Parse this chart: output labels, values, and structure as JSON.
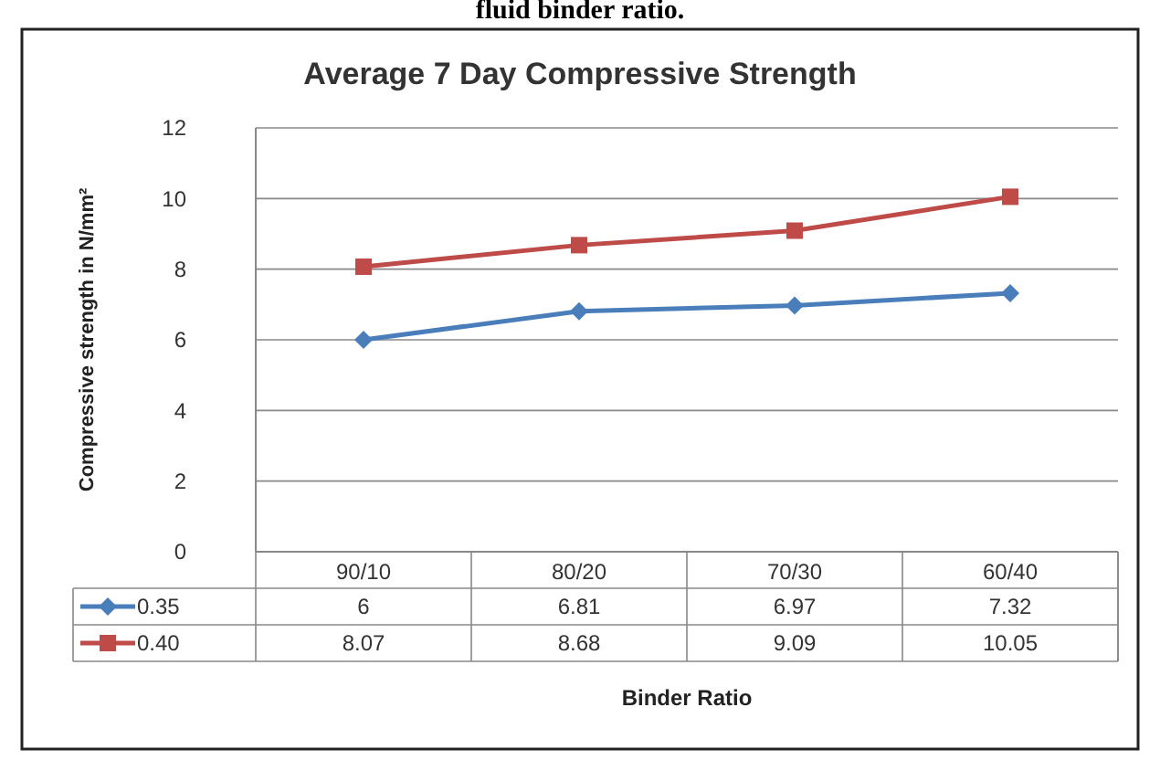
{
  "chart_data": {
    "type": "line",
    "title": "Average 7 Day Compressive Strength",
    "xlabel": "Binder Ratio",
    "ylabel": "Compressive strength in N/mm²",
    "annotations": [
      "fluid binder ratio."
    ],
    "categories": [
      "90/10",
      "80/20",
      "70/30",
      "60/40"
    ],
    "series": [
      {
        "name": "0.35",
        "color": "#4a7ebb",
        "marker": "diamond",
        "values": [
          6,
          6.81,
          6.97,
          7.32
        ]
      },
      {
        "name": "0.40",
        "color": "#be4b48",
        "marker": "square",
        "values": [
          8.07,
          8.68,
          9.09,
          10.05
        ]
      }
    ],
    "ylim": [
      0,
      12
    ],
    "yticks": [
      0,
      2,
      4,
      6,
      8,
      10,
      12
    ],
    "grid": "y",
    "data_labels": true,
    "legend": "bottom left"
  }
}
